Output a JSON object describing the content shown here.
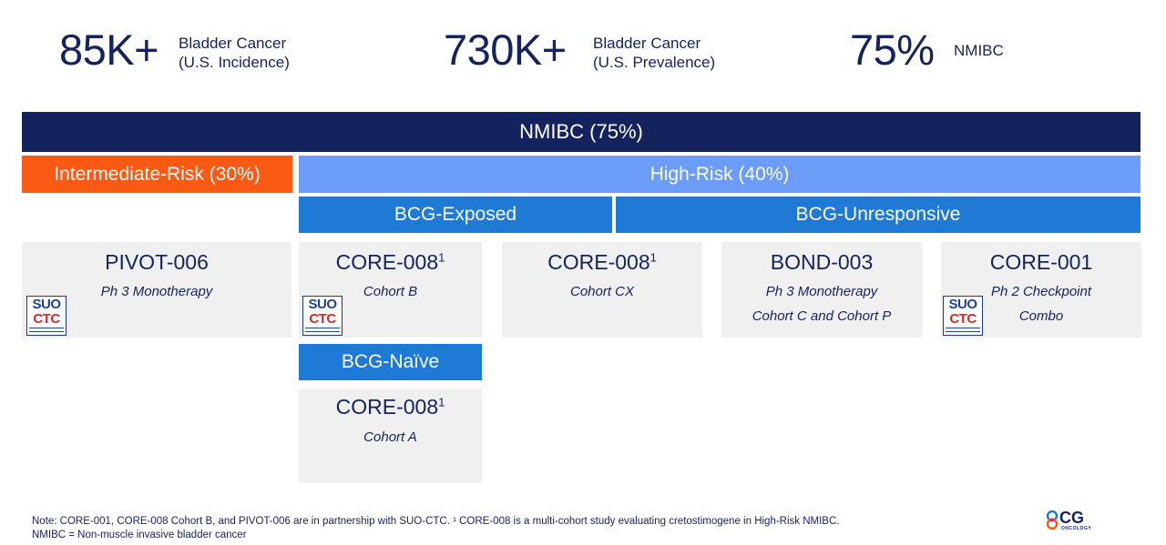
{
  "stats": [
    {
      "value": "85K+",
      "label_line1": "Bladder Cancer",
      "label_line2": "(U.S. Incidence)"
    },
    {
      "value": "730K+",
      "label_line1": "Bladder Cancer",
      "label_line2": "(U.S. Prevalence)"
    },
    {
      "value": "75%",
      "label_line1": "NMIBC",
      "label_line2": ""
    }
  ],
  "headers": {
    "nmibc": "NMIBC (75%)",
    "intermediate_risk": "Intermediate-Risk (30%)",
    "high_risk": "High-Risk (40%)",
    "bcg_exposed": "BCG-Exposed",
    "bcg_unresponsive": "BCG-Unresponsive",
    "bcg_naive": "BCG-Naïve"
  },
  "trials": {
    "pivot006": {
      "name": "PIVOT-006",
      "line1": "Ph 3 Monotherapy",
      "line2": ""
    },
    "core008_b": {
      "name": "CORE-008",
      "sup": "1",
      "line1": "Cohort B",
      "line2": ""
    },
    "core008_cx": {
      "name": "CORE-008",
      "sup": "1",
      "line1": "Cohort CX",
      "line2": ""
    },
    "bond003": {
      "name": "BOND-003",
      "line1": "Ph 3 Monotherapy",
      "line2": "Cohort C and Cohort P"
    },
    "core001": {
      "name": "CORE-001",
      "line1": "Ph 2  Checkpoint",
      "line2": "Combo"
    },
    "core008_a": {
      "name": "CORE-008",
      "sup": "1",
      "line1": "Cohort A",
      "line2": ""
    }
  },
  "partner_logo": {
    "line1": "SUO",
    "line2": "CTC"
  },
  "colors": {
    "navy": "#14225e",
    "orange": "#fa5a14",
    "light_blue": "#6b9cf7",
    "mid_blue": "#1f7ad6",
    "box_gray": "#f0f0f1"
  },
  "footnote": {
    "line1": "Note: CORE-001, CORE-008 Cohort B, and PIVOT-006 are in partnership with SUO-CTC. ¹ CORE-008 is a multi-cohort study evaluating cretostimogene in High-Risk NMIBC.",
    "line2": "NMIBC = Non-muscle invasive bladder cancer"
  },
  "company_logo": {
    "mark": "CG",
    "text": "ONCOLOGY"
  }
}
